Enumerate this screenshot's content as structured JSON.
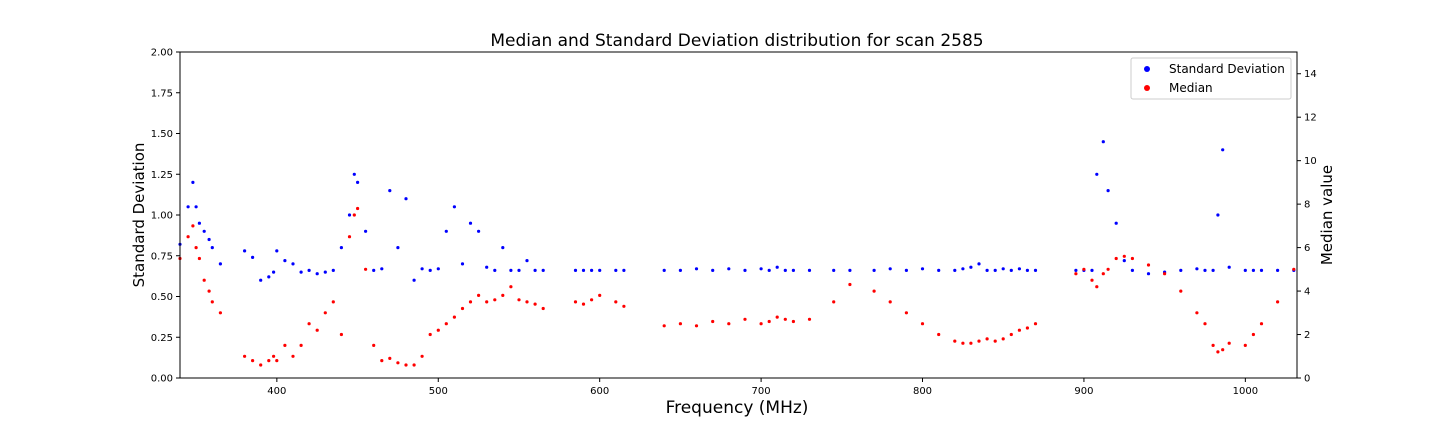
{
  "chart_data": {
    "type": "scatter",
    "title": "Median and Standard Deviation distribution for scan 2585",
    "xlabel": "Frequency (MHz)",
    "ylabel": "Standard Deviation",
    "ylabel_right": "Median value",
    "xlim": [
      340,
      1032
    ],
    "ylim": [
      0,
      2
    ],
    "ylim_right": [
      0,
      15
    ],
    "x_ticks": [
      400,
      500,
      600,
      700,
      800,
      900,
      1000
    ],
    "y_ticks": [
      0.0,
      0.25,
      0.5,
      0.75,
      1.0,
      1.25,
      1.5,
      1.75,
      2.0
    ],
    "y_ticks_labels": [
      "0.00",
      "0.25",
      "0.50",
      "0.75",
      "1.00",
      "1.25",
      "1.50",
      "1.75",
      "2.00"
    ],
    "y_ticks_right": [
      0,
      2,
      4,
      6,
      8,
      10,
      12,
      14
    ],
    "legend_position": "top-right",
    "grid": false,
    "series": [
      {
        "name": "Standard Deviation",
        "axis": "left",
        "color": "#0000ff",
        "x": [
          340,
          345,
          348,
          350,
          352,
          355,
          358,
          360,
          365,
          380,
          385,
          390,
          395,
          398,
          400,
          405,
          410,
          415,
          420,
          425,
          430,
          435,
          440,
          445,
          448,
          450,
          455,
          460,
          465,
          470,
          475,
          480,
          485,
          490,
          495,
          500,
          505,
          510,
          515,
          520,
          525,
          530,
          535,
          540,
          545,
          550,
          555,
          560,
          565,
          585,
          590,
          595,
          600,
          610,
          615,
          640,
          650,
          660,
          670,
          680,
          690,
          700,
          705,
          710,
          715,
          720,
          730,
          745,
          755,
          770,
          780,
          790,
          800,
          810,
          820,
          825,
          830,
          835,
          840,
          845,
          850,
          855,
          860,
          865,
          870,
          895,
          900,
          905,
          908,
          912,
          915,
          920,
          925,
          930,
          940,
          950,
          960,
          970,
          975,
          980,
          983,
          986,
          990,
          1000,
          1005,
          1010,
          1020,
          1030
        ],
        "y": [
          0.82,
          1.05,
          1.2,
          1.05,
          0.95,
          0.9,
          0.85,
          0.8,
          0.7,
          0.78,
          0.74,
          0.6,
          0.62,
          0.65,
          0.78,
          0.72,
          0.7,
          0.65,
          0.66,
          0.64,
          0.65,
          0.66,
          0.8,
          1.0,
          1.25,
          1.2,
          0.9,
          0.66,
          0.67,
          1.15,
          0.8,
          1.1,
          0.6,
          0.67,
          0.66,
          0.67,
          0.9,
          1.05,
          0.7,
          0.95,
          0.9,
          0.68,
          0.66,
          0.8,
          0.66,
          0.66,
          0.72,
          0.66,
          0.66,
          0.66,
          0.66,
          0.66,
          0.66,
          0.66,
          0.66,
          0.66,
          0.66,
          0.67,
          0.66,
          0.67,
          0.66,
          0.67,
          0.66,
          0.68,
          0.66,
          0.66,
          0.66,
          0.66,
          0.66,
          0.66,
          0.67,
          0.66,
          0.67,
          0.66,
          0.66,
          0.67,
          0.68,
          0.7,
          0.66,
          0.66,
          0.67,
          0.66,
          0.67,
          0.66,
          0.66,
          0.66,
          0.66,
          0.66,
          1.25,
          1.45,
          1.15,
          0.95,
          0.72,
          0.66,
          0.64,
          0.65,
          0.66,
          0.67,
          0.66,
          0.66,
          1.0,
          1.4,
          0.68,
          0.66,
          0.66,
          0.66,
          0.66,
          0.66
        ]
      },
      {
        "name": "Median",
        "axis": "right",
        "color": "#ff0000",
        "x": [
          340,
          345,
          348,
          350,
          352,
          355,
          358,
          360,
          365,
          380,
          385,
          390,
          395,
          398,
          400,
          405,
          410,
          415,
          420,
          425,
          430,
          435,
          440,
          445,
          448,
          450,
          455,
          460,
          465,
          470,
          475,
          480,
          485,
          490,
          495,
          500,
          505,
          510,
          515,
          520,
          525,
          530,
          535,
          540,
          545,
          550,
          555,
          560,
          565,
          585,
          590,
          595,
          600,
          610,
          615,
          640,
          650,
          660,
          670,
          680,
          690,
          700,
          705,
          710,
          715,
          720,
          730,
          745,
          755,
          770,
          780,
          790,
          800,
          810,
          820,
          825,
          830,
          835,
          840,
          845,
          850,
          855,
          860,
          865,
          870,
          895,
          900,
          905,
          908,
          912,
          915,
          920,
          925,
          930,
          940,
          950,
          960,
          970,
          975,
          980,
          983,
          986,
          990,
          1000,
          1005,
          1010,
          1020,
          1030
        ],
        "y": [
          5.5,
          6.5,
          7.0,
          6.0,
          5.5,
          4.5,
          4.0,
          3.5,
          3.0,
          1.0,
          0.8,
          0.6,
          0.8,
          1.0,
          0.8,
          1.5,
          1.0,
          1.5,
          2.5,
          2.2,
          3.0,
          3.5,
          2.0,
          6.5,
          7.5,
          7.8,
          5.0,
          1.5,
          0.8,
          0.9,
          0.7,
          0.6,
          0.6,
          1.0,
          2.0,
          2.2,
          2.5,
          2.8,
          3.2,
          3.5,
          3.8,
          3.5,
          3.6,
          3.8,
          4.2,
          3.6,
          3.5,
          3.4,
          3.2,
          3.5,
          3.4,
          3.6,
          3.8,
          3.5,
          3.3,
          2.4,
          2.5,
          2.4,
          2.6,
          2.5,
          2.7,
          2.5,
          2.6,
          2.8,
          2.7,
          2.6,
          2.7,
          3.5,
          4.3,
          4.0,
          3.5,
          3.0,
          2.5,
          2.0,
          1.7,
          1.6,
          1.6,
          1.7,
          1.8,
          1.7,
          1.8,
          2.0,
          2.2,
          2.3,
          2.5,
          4.8,
          5.0,
          4.5,
          4.2,
          4.8,
          5.0,
          5.5,
          5.6,
          5.5,
          5.2,
          4.8,
          4.0,
          3.0,
          2.5,
          1.5,
          1.2,
          1.3,
          1.6,
          1.5,
          2.0,
          2.5,
          3.5,
          5.0
        ]
      }
    ]
  }
}
